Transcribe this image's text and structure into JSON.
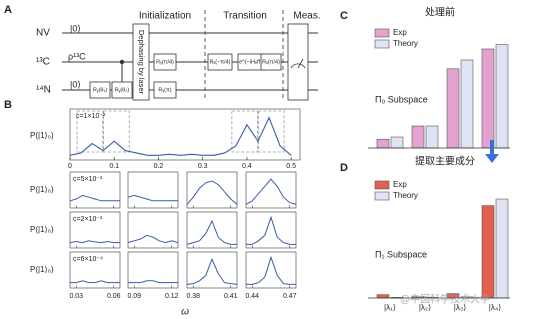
{
  "panel_labels": [
    "A",
    "B",
    "C",
    "D"
  ],
  "circuit": {
    "qubits": [
      {
        "name": "NV",
        "state": "|0⟩"
      },
      {
        "name": "¹³C",
        "state": "ρ¹³C"
      },
      {
        "name": "¹⁴N",
        "state": "|0⟩"
      }
    ],
    "stages": [
      "Initialization",
      "Transition",
      "Meas."
    ],
    "dephasing": "Dephasing by laser",
    "gates": [
      "Rᵧ(θ₁)",
      "Rᵧ(θ₂)",
      "Rᵧ(π/4)",
      "Rᵧ(π)",
      "Rₓ(−π/4)",
      "e^(−iHₑff t)",
      "Rₓ(π/4)"
    ]
  },
  "panel_b": {
    "type": "line",
    "ylabel": "P(|1⟩₀)",
    "xlabel": "ω",
    "color": "#3a5ba8",
    "main": {
      "label": "c=1×10⁻²",
      "x": [
        0,
        0.025,
        0.05,
        0.075,
        0.1,
        0.125,
        0.15,
        0.175,
        0.2,
        0.225,
        0.25,
        0.275,
        0.3,
        0.325,
        0.35,
        0.375,
        0.4,
        0.425,
        0.45,
        0.475,
        0.5
      ],
      "values": [
        0.1,
        0.15,
        0.35,
        0.2,
        0.4,
        0.2,
        0.15,
        0.1,
        0.1,
        0.12,
        0.1,
        0.12,
        0.1,
        0.1,
        0.15,
        0.3,
        0.75,
        0.4,
        0.9,
        0.3,
        0.1
      ],
      "xlim": [
        0,
        0.52
      ],
      "xticks": [
        0,
        0.1,
        0.2,
        0.3,
        0.4,
        0.5
      ]
    },
    "columns": [
      {
        "x": [
          0.025,
          0.03,
          0.035,
          0.04,
          0.045,
          0.05,
          0.055,
          0.06,
          0.065
        ],
        "xlim": [
          0.025,
          0.065
        ],
        "xticks": [
          0.03,
          0.06
        ]
      },
      {
        "x": [
          0.085,
          0.09,
          0.095,
          0.1,
          0.105,
          0.11,
          0.115,
          0.12,
          0.125
        ],
        "xlim": [
          0.085,
          0.125
        ],
        "xticks": [
          0.09,
          0.12
        ]
      },
      {
        "x": [
          0.375,
          0.38,
          0.385,
          0.39,
          0.395,
          0.4,
          0.405,
          0.41,
          0.415
        ],
        "xlim": [
          0.375,
          0.415
        ],
        "xticks": [
          0.38,
          0.41
        ]
      },
      {
        "x": [
          0.435,
          0.44,
          0.445,
          0.45,
          0.455,
          0.46,
          0.465,
          0.47,
          0.475
        ],
        "xlim": [
          0.435,
          0.475
        ],
        "xticks": [
          0.44,
          0.47
        ]
      }
    ],
    "rows": [
      {
        "label": "c=5×10⁻³",
        "values": [
          [
            0.2,
            0.25,
            0.35,
            0.3,
            0.25,
            0.2,
            0.2,
            0.2,
            0.2
          ],
          [
            0.3,
            0.35,
            0.3,
            0.25,
            0.2,
            0.2,
            0.2,
            0.2,
            0.2
          ],
          [
            0.1,
            0.3,
            0.55,
            0.7,
            0.75,
            0.65,
            0.45,
            0.25,
            0.1
          ],
          [
            0.1,
            0.2,
            0.4,
            0.6,
            0.8,
            0.6,
            0.3,
            0.15,
            0.1
          ]
        ]
      },
      {
        "label": "c=2×10⁻³",
        "values": [
          [
            0.15,
            0.18,
            0.15,
            0.2,
            0.17,
            0.15,
            0.18,
            0.15,
            0.15
          ],
          [
            0.15,
            0.2,
            0.25,
            0.35,
            0.3,
            0.2,
            0.15,
            0.2,
            0.15
          ],
          [
            0.1,
            0.15,
            0.2,
            0.4,
            0.75,
            0.3,
            0.15,
            0.1,
            0.1
          ],
          [
            0.1,
            0.1,
            0.2,
            0.35,
            0.85,
            0.3,
            0.15,
            0.1,
            0.1
          ]
        ]
      },
      {
        "label": "c=6×10⁻⁴",
        "values": [
          [
            0.15,
            0.15,
            0.2,
            0.15,
            0.15,
            0.2,
            0.15,
            0.15,
            0.15
          ],
          [
            0.15,
            0.15,
            0.15,
            0.2,
            0.2,
            0.15,
            0.15,
            0.15,
            0.15
          ],
          [
            0.1,
            0.12,
            0.2,
            0.35,
            0.8,
            0.4,
            0.15,
            0.12,
            0.1
          ],
          [
            0.1,
            0.1,
            0.15,
            0.3,
            0.85,
            0.35,
            0.12,
            0.1,
            0.1
          ]
        ]
      }
    ]
  },
  "panel_c": {
    "type": "bar",
    "title": "处理前",
    "subspace": "Π₀ Subspace",
    "categories": [
      null,
      null,
      null,
      null
    ],
    "series": [
      {
        "name": "Exp",
        "color": "#e3a2cf",
        "values": [
          0.04,
          0.1,
          0.36,
          0.45
        ]
      },
      {
        "name": "Theory",
        "color": "#dfe3f3",
        "values": [
          0.05,
          0.1,
          0.4,
          0.47
        ]
      }
    ]
  },
  "panel_d": {
    "type": "bar",
    "title": "提取主要成分",
    "subspace": "Π₁ Subspace",
    "categories": [
      "|λ₁⟩",
      "|λ₂⟩",
      "|λ₃⟩",
      "|λ₄⟩"
    ],
    "series": [
      {
        "name": "Exp",
        "color": "#e2604f",
        "values": [
          0.015,
          0.005,
          0.02,
          0.42
        ]
      },
      {
        "name": "Theory",
        "color": "#dfe3f3",
        "values": [
          0.003,
          0.003,
          0.005,
          0.45
        ]
      }
    ]
  },
  "watermark": "@中国科学技术大学"
}
